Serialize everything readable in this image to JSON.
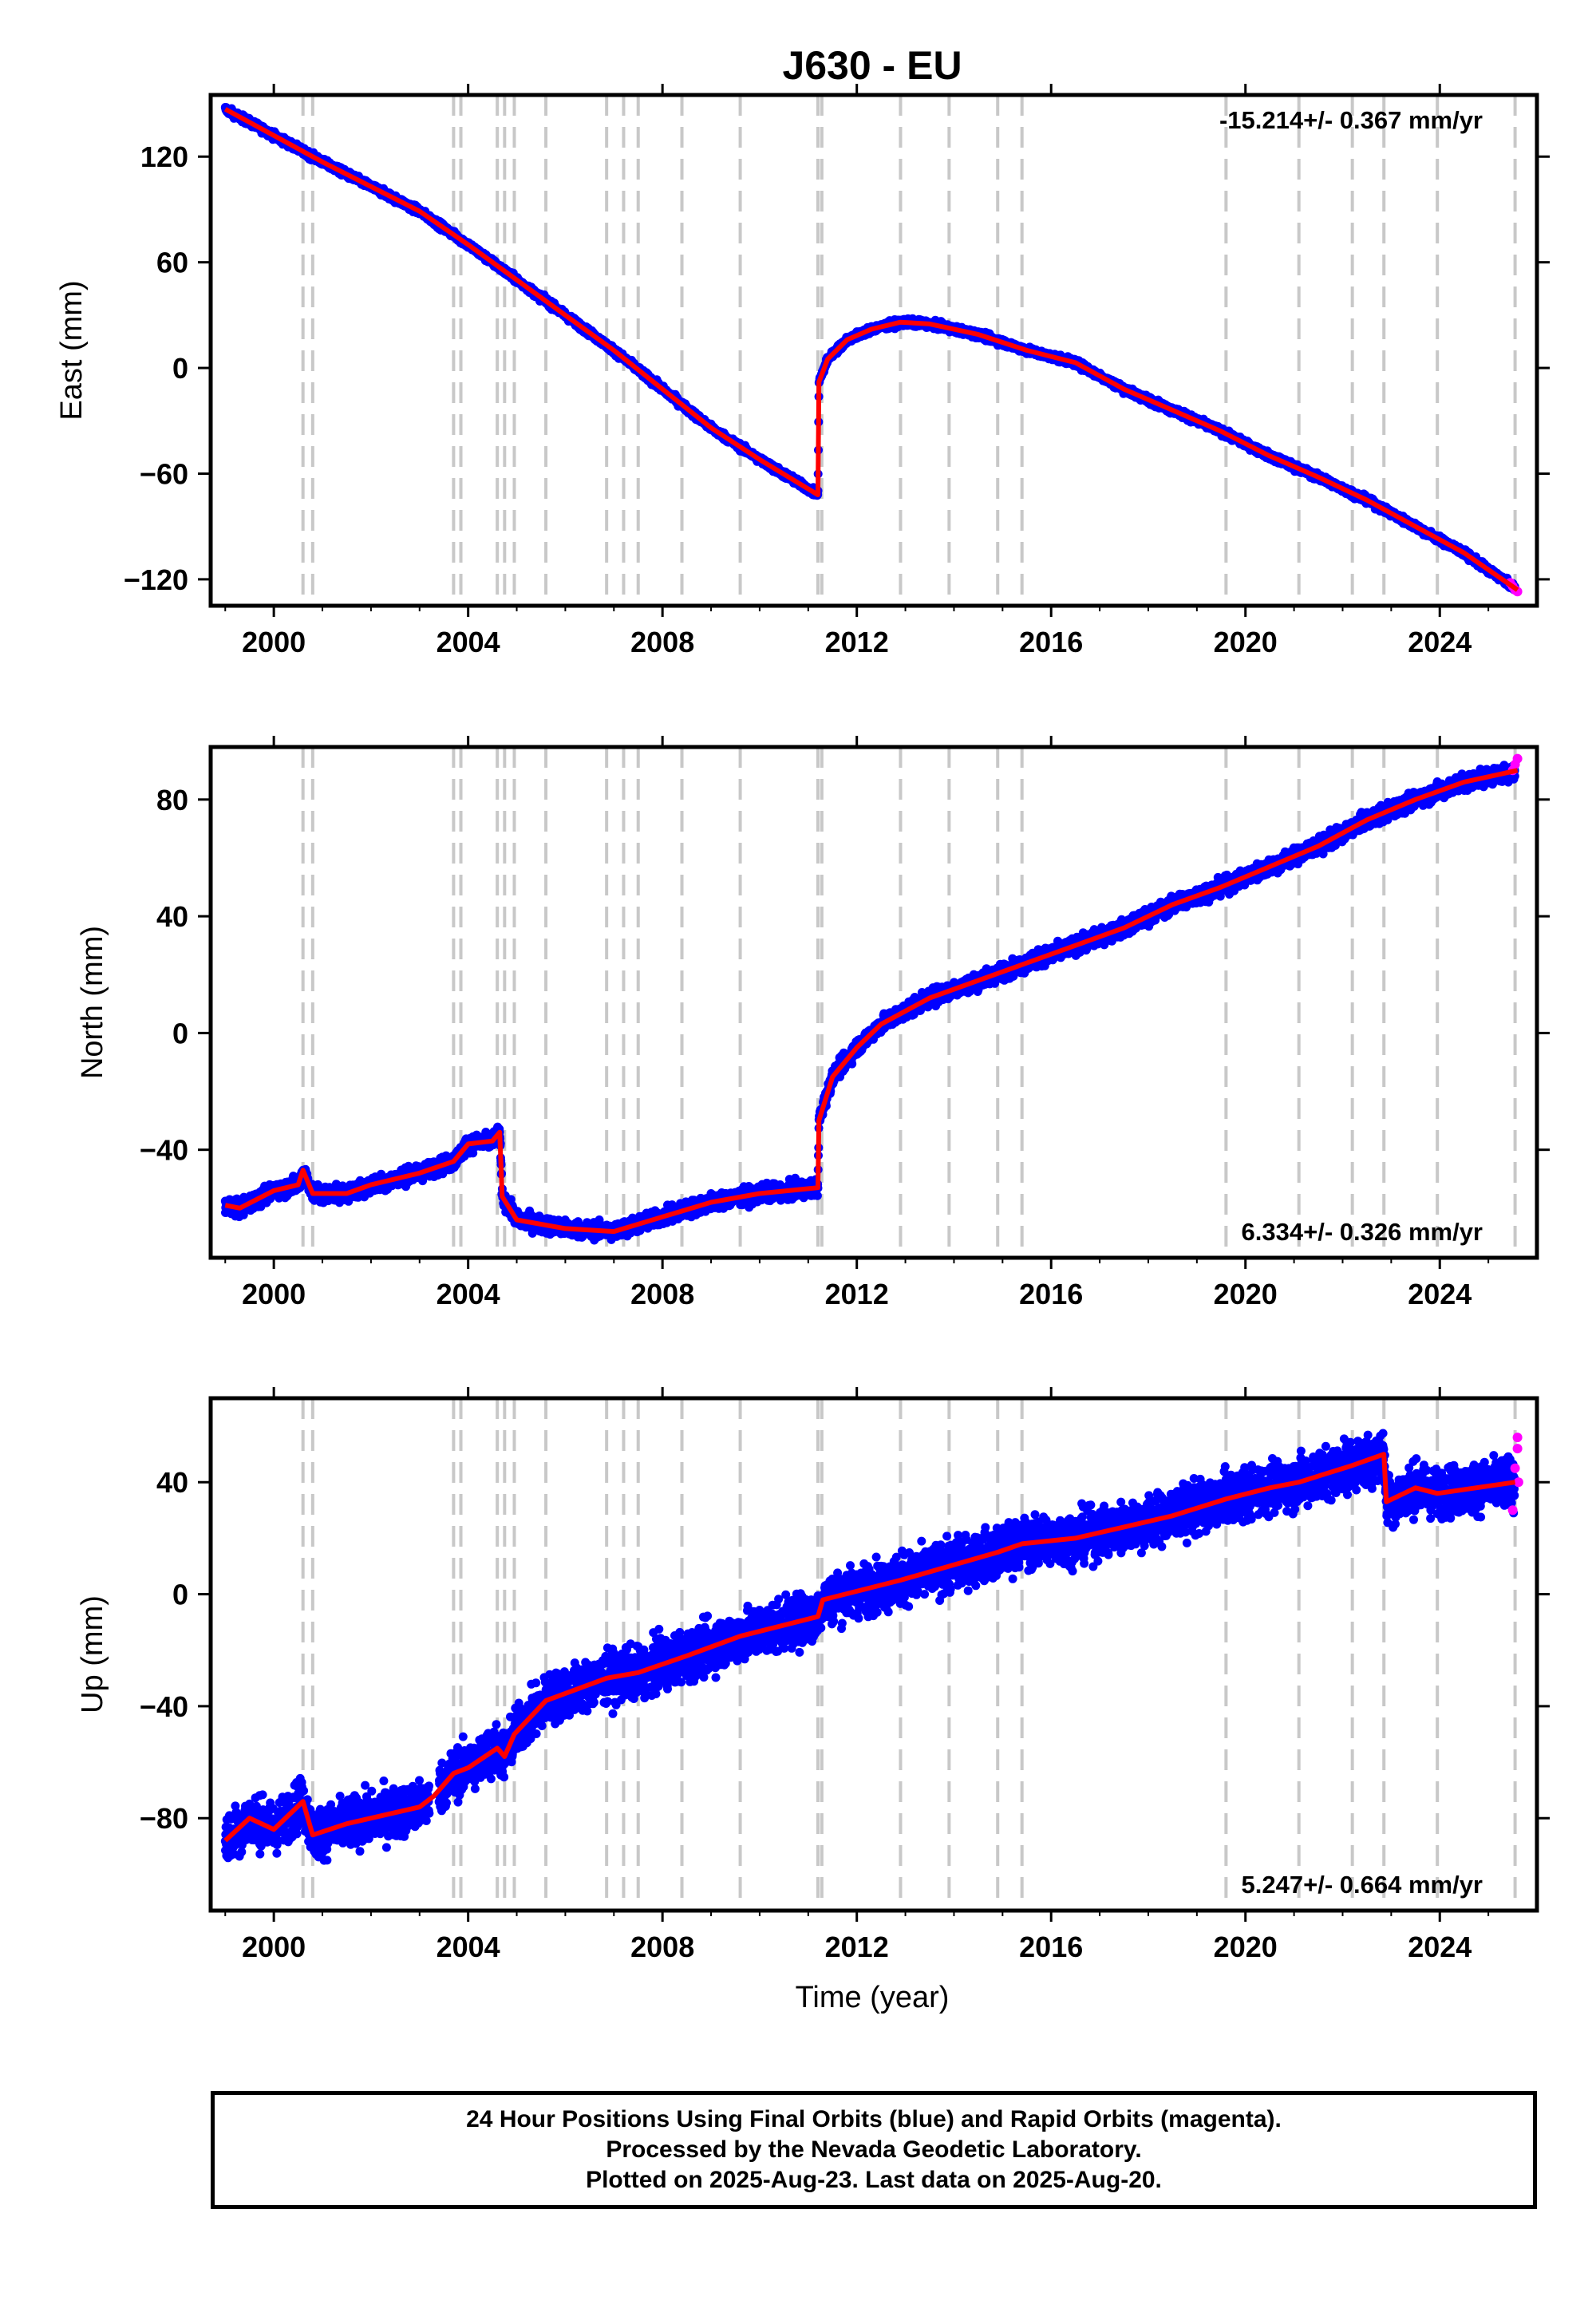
{
  "chart_data": {
    "type": "scatter",
    "title": "J630 - EU",
    "xlabel": "Time (year)",
    "xlim": [
      1998.7,
      2026.0
    ],
    "xticks": [
      2000,
      2004,
      2008,
      2012,
      2016,
      2020,
      2024
    ],
    "xtick_labels": [
      "2000",
      "2004",
      "2008",
      "2012",
      "2016",
      "2020",
      "2024"
    ],
    "step_lines": [
      2000.6,
      2000.8,
      2003.7,
      2003.85,
      2004.6,
      2004.75,
      2004.95,
      2005.6,
      2006.85,
      2007.2,
      2007.5,
      2008.4,
      2009.6,
      2011.2,
      2011.28,
      2012.9,
      2013.9,
      2014.9,
      2015.4,
      2019.6,
      2021.1,
      2022.2,
      2022.85,
      2023.95,
      2025.55
    ],
    "series_colors": {
      "final_orbits": "#0000ff",
      "rapid_orbits": "#ff00ff",
      "model": "#ff0000",
      "steps": "#c8c8c8"
    },
    "panels": [
      {
        "id": "east",
        "ylabel": "East (mm)",
        "ylim": [
          -135,
          155
        ],
        "yticks": [
          -120,
          -60,
          0,
          60,
          120
        ],
        "ytick_labels": [
          "−120",
          "−60",
          "0",
          "60",
          "120"
        ],
        "rate_text": "-15.214+/- 0.367 mm/yr",
        "rate_position": "top-right",
        "noise": 1.8,
        "model": [
          [
            1999.0,
            147
          ],
          [
            2000.0,
            132
          ],
          [
            2001.0,
            117
          ],
          [
            2002.0,
            103
          ],
          [
            2003.0,
            89
          ],
          [
            2004.0,
            70
          ],
          [
            2005.0,
            50
          ],
          [
            2006.0,
            30
          ],
          [
            2007.0,
            10
          ],
          [
            2008.0,
            -12
          ],
          [
            2009.0,
            -34
          ],
          [
            2010.0,
            -52
          ],
          [
            2011.2,
            -72
          ],
          [
            2011.22,
            -8
          ],
          [
            2011.4,
            5
          ],
          [
            2011.8,
            16
          ],
          [
            2012.3,
            22
          ],
          [
            2012.9,
            26
          ],
          [
            2013.5,
            25
          ],
          [
            2014.5,
            19
          ],
          [
            2015.5,
            10
          ],
          [
            2016.5,
            3
          ],
          [
            2017.5,
            -12
          ],
          [
            2018.5,
            -24
          ],
          [
            2019.5,
            -36
          ],
          [
            2020.5,
            -50
          ],
          [
            2021.5,
            -62
          ],
          [
            2022.5,
            -75
          ],
          [
            2023.5,
            -90
          ],
          [
            2024.5,
            -105
          ],
          [
            2025.6,
            -126
          ]
        ],
        "rapid": [
          [
            2025.45,
            -122
          ],
          [
            2025.5,
            -124
          ],
          [
            2025.55,
            -126
          ],
          [
            2025.6,
            -127
          ]
        ]
      },
      {
        "id": "north",
        "ylabel": "North (mm)",
        "ylim": [
          -77,
          98
        ],
        "yticks": [
          -40,
          0,
          40,
          80
        ],
        "ytick_labels": [
          "−40",
          "0",
          "40",
          "80"
        ],
        "rate_text": "6.334+/- 0.326 mm/yr",
        "rate_position": "bottom-right",
        "noise": 2.5,
        "model": [
          [
            1999.0,
            -59
          ],
          [
            1999.3,
            -60
          ],
          [
            2000.0,
            -54
          ],
          [
            2000.5,
            -52
          ],
          [
            2000.6,
            -47
          ],
          [
            2000.8,
            -55
          ],
          [
            2001.5,
            -55
          ],
          [
            2002.0,
            -52
          ],
          [
            2003.0,
            -48
          ],
          [
            2003.7,
            -44
          ],
          [
            2004.0,
            -38
          ],
          [
            2004.5,
            -37
          ],
          [
            2004.65,
            -34
          ],
          [
            2004.7,
            -56
          ],
          [
            2005.0,
            -64
          ],
          [
            2006.0,
            -67
          ],
          [
            2007.0,
            -68
          ],
          [
            2008.0,
            -63
          ],
          [
            2009.0,
            -58
          ],
          [
            2010.0,
            -55
          ],
          [
            2011.2,
            -53
          ],
          [
            2011.22,
            -30
          ],
          [
            2011.5,
            -15
          ],
          [
            2012.0,
            -5
          ],
          [
            2012.5,
            3
          ],
          [
            2013.5,
            12
          ],
          [
            2014.5,
            18
          ],
          [
            2015.5,
            24
          ],
          [
            2016.5,
            30
          ],
          [
            2017.5,
            36
          ],
          [
            2018.5,
            44
          ],
          [
            2019.5,
            50
          ],
          [
            2020.5,
            57
          ],
          [
            2021.5,
            64
          ],
          [
            2022.5,
            73
          ],
          [
            2023.5,
            80
          ],
          [
            2024.5,
            86
          ],
          [
            2025.6,
            90
          ]
        ],
        "rapid": [
          [
            2025.5,
            90
          ],
          [
            2025.55,
            92
          ],
          [
            2025.6,
            94
          ]
        ]
      },
      {
        "id": "up",
        "ylabel": "Up (mm)",
        "ylim": [
          -113,
          70
        ],
        "yticks": [
          -80,
          -40,
          0,
          40
        ],
        "ytick_labels": [
          "−80",
          "−40",
          "0",
          "40"
        ],
        "rate_text": "5.247+/- 0.664 mm/yr",
        "rate_position": "bottom-right",
        "noise": 8,
        "model": [
          [
            1999.0,
            -88
          ],
          [
            1999.5,
            -80
          ],
          [
            2000.0,
            -84
          ],
          [
            2000.6,
            -74
          ],
          [
            2000.8,
            -86
          ],
          [
            2001.5,
            -82
          ],
          [
            2002.5,
            -78
          ],
          [
            2003.0,
            -76
          ],
          [
            2003.3,
            -72
          ],
          [
            2003.7,
            -64
          ],
          [
            2004.0,
            -62
          ],
          [
            2004.6,
            -55
          ],
          [
            2004.75,
            -58
          ],
          [
            2004.95,
            -50
          ],
          [
            2005.6,
            -38
          ],
          [
            2006.85,
            -30
          ],
          [
            2007.5,
            -28
          ],
          [
            2008.5,
            -22
          ],
          [
            2009.6,
            -15
          ],
          [
            2011.2,
            -8
          ],
          [
            2011.3,
            -2
          ],
          [
            2012.9,
            5
          ],
          [
            2013.9,
            10
          ],
          [
            2014.9,
            15
          ],
          [
            2015.4,
            18
          ],
          [
            2016.5,
            20
          ],
          [
            2017.5,
            24
          ],
          [
            2018.5,
            28
          ],
          [
            2019.6,
            34
          ],
          [
            2020.5,
            38
          ],
          [
            2021.1,
            40
          ],
          [
            2022.2,
            46
          ],
          [
            2022.85,
            50
          ],
          [
            2022.9,
            33
          ],
          [
            2023.5,
            38
          ],
          [
            2023.95,
            36
          ],
          [
            2025.55,
            40
          ]
        ],
        "rapid": [
          [
            2025.5,
            30
          ],
          [
            2025.55,
            45
          ],
          [
            2025.6,
            52
          ],
          [
            2025.6,
            56
          ],
          [
            2025.62,
            40
          ]
        ]
      }
    ],
    "footer_lines": [
      "24 Hour Positions Using Final Orbits (blue) and Rapid Orbits (magenta).",
      "Processed by the Nevada Geodetic Laboratory.",
      "Plotted on 2025-Aug-23. Last data on 2025-Aug-20."
    ]
  }
}
